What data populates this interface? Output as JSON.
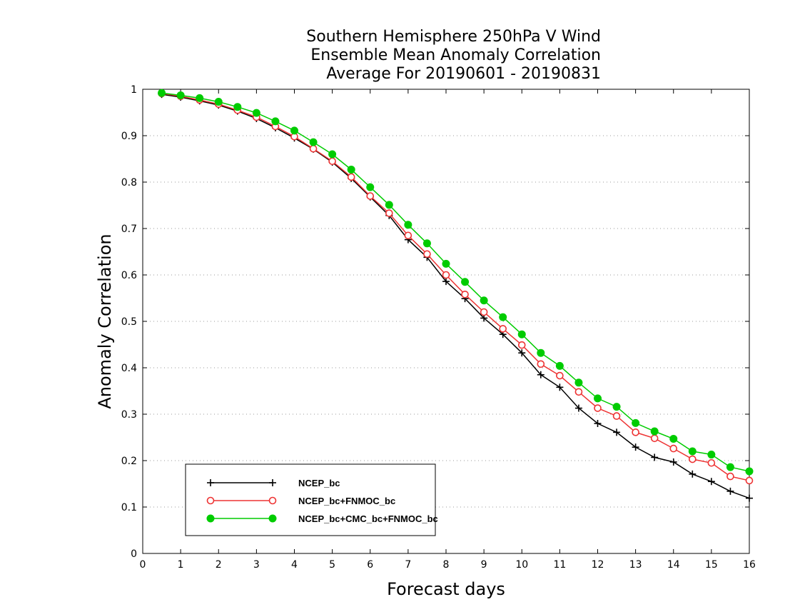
{
  "chart_data": {
    "type": "line",
    "title": [
      "Southern Hemisphere 250hPa V Wind",
      "Ensemble Mean Anomaly Correlation",
      "Average For 20190601 - 20190831"
    ],
    "xlabel": "Forecast days",
    "ylabel": "Anomaly Correlation",
    "xlim": [
      0,
      16
    ],
    "ylim": [
      0,
      1
    ],
    "xticks": [
      0,
      1,
      2,
      3,
      4,
      5,
      6,
      7,
      8,
      9,
      10,
      11,
      12,
      13,
      14,
      15,
      16
    ],
    "yticks": [
      0,
      0.1,
      0.2,
      0.3,
      0.4,
      0.5,
      0.6,
      0.7,
      0.8,
      0.9,
      1
    ],
    "ytick_labels": [
      "0",
      "0.1",
      "0.2",
      "0.3",
      "0.4",
      "0.5",
      "0.6",
      "0.7",
      "0.8",
      "0.9",
      "1"
    ],
    "grid": "horizontal-dotted",
    "legend_position": "bottom-left",
    "x": [
      0.5,
      1,
      1.5,
      2,
      2.5,
      3,
      3.5,
      4,
      4.5,
      5,
      5.5,
      6,
      6.5,
      7,
      7.5,
      8,
      8.5,
      9,
      9.5,
      10,
      10.5,
      11,
      11.5,
      12,
      12.5,
      13,
      13.5,
      14,
      14.5,
      15,
      15.5,
      16
    ],
    "series": [
      {
        "name": "NCEP_bc",
        "color": "#000000",
        "marker": "plus",
        "values": [
          0.989,
          0.983,
          0.975,
          0.966,
          0.953,
          0.937,
          0.917,
          0.895,
          0.871,
          0.843,
          0.808,
          0.768,
          0.728,
          0.676,
          0.638,
          0.586,
          0.549,
          0.507,
          0.472,
          0.432,
          0.385,
          0.358,
          0.313,
          0.28,
          0.261,
          0.229,
          0.207,
          0.197,
          0.171,
          0.155,
          0.134,
          0.119
        ]
      },
      {
        "name": "NCEP_bc+FNMOC_bc",
        "color": "#ee3333",
        "marker": "open-circle",
        "values": [
          0.991,
          0.985,
          0.977,
          0.968,
          0.955,
          0.94,
          0.92,
          0.898,
          0.872,
          0.845,
          0.811,
          0.77,
          0.733,
          0.685,
          0.645,
          0.6,
          0.558,
          0.52,
          0.484,
          0.449,
          0.408,
          0.383,
          0.348,
          0.313,
          0.296,
          0.261,
          0.248,
          0.226,
          0.203,
          0.195,
          0.166,
          0.157
        ]
      },
      {
        "name": "NCEP_bc+CMC_bc+FNMOC_bc",
        "color": "#00cc00",
        "marker": "filled-circle",
        "values": [
          0.992,
          0.987,
          0.981,
          0.973,
          0.962,
          0.949,
          0.931,
          0.911,
          0.886,
          0.86,
          0.827,
          0.789,
          0.751,
          0.708,
          0.668,
          0.624,
          0.585,
          0.545,
          0.509,
          0.472,
          0.432,
          0.404,
          0.368,
          0.334,
          0.316,
          0.281,
          0.263,
          0.247,
          0.22,
          0.213,
          0.186,
          0.177
        ]
      }
    ]
  }
}
